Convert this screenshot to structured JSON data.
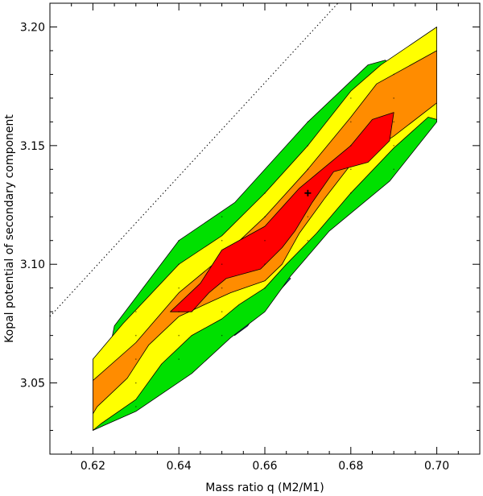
{
  "chart_data": {
    "type": "contour",
    "xlabel": "Mass ratio q (M2/M1)",
    "ylabel": "Kopal potential of secondary component",
    "xlim": [
      0.61,
      0.71
    ],
    "ylim": [
      3.02,
      3.21
    ],
    "x_ticks": [
      0.62,
      0.64,
      0.66,
      0.68,
      0.7
    ],
    "x_tick_labels": [
      "0.62",
      "0.64",
      "0.66",
      "0.68",
      "0.70"
    ],
    "y_ticks": [
      3.05,
      3.1,
      3.15,
      3.2
    ],
    "y_tick_labels": [
      "3.05",
      "3.10",
      "3.15",
      "3.20"
    ],
    "grid": false,
    "levels": [
      {
        "color": "#1e9bff",
        "polygon": [
          [
            0.652,
            3.073
          ],
          [
            0.662,
            3.086
          ],
          [
            0.666,
            3.094
          ],
          [
            0.664,
            3.095
          ],
          [
            0.656,
            3.074
          ],
          [
            0.653,
            3.07
          ]
        ]
      },
      {
        "color": "#00e000",
        "polygon": [
          [
            0.62,
            3.03
          ],
          [
            0.625,
            3.074
          ],
          [
            0.64,
            3.11
          ],
          [
            0.653,
            3.126
          ],
          [
            0.67,
            3.16
          ],
          [
            0.684,
            3.184
          ],
          [
            0.688,
            3.186
          ],
          [
            0.7,
            3.17
          ],
          [
            0.7,
            3.16
          ],
          [
            0.689,
            3.135
          ],
          [
            0.675,
            3.114
          ],
          [
            0.666,
            3.095
          ],
          [
            0.66,
            3.08
          ],
          [
            0.652,
            3.069
          ],
          [
            0.643,
            3.054
          ],
          [
            0.63,
            3.038
          ]
        ]
      },
      {
        "color": "#ffff00",
        "polygon": [
          [
            0.62,
            3.03
          ],
          [
            0.62,
            3.06
          ],
          [
            0.627,
            3.075
          ],
          [
            0.64,
            3.1
          ],
          [
            0.65,
            3.112
          ],
          [
            0.66,
            3.13
          ],
          [
            0.67,
            3.15
          ],
          [
            0.68,
            3.173
          ],
          [
            0.687,
            3.184
          ],
          [
            0.7,
            3.2
          ],
          [
            0.7,
            3.161
          ],
          [
            0.698,
            3.162
          ],
          [
            0.69,
            3.149
          ],
          [
            0.68,
            3.13
          ],
          [
            0.672,
            3.113
          ],
          [
            0.665,
            3.1
          ],
          [
            0.66,
            3.09
          ],
          [
            0.654,
            3.083
          ],
          [
            0.65,
            3.077
          ],
          [
            0.643,
            3.07
          ],
          [
            0.636,
            3.058
          ],
          [
            0.63,
            3.043
          ],
          [
            0.622,
            3.033
          ]
        ]
      },
      {
        "color": "#ff8c00",
        "polygon": [
          [
            0.62,
            3.037
          ],
          [
            0.62,
            3.051
          ],
          [
            0.63,
            3.067
          ],
          [
            0.64,
            3.088
          ],
          [
            0.65,
            3.103
          ],
          [
            0.66,
            3.12
          ],
          [
            0.67,
            3.14
          ],
          [
            0.68,
            3.162
          ],
          [
            0.686,
            3.176
          ],
          [
            0.7,
            3.19
          ],
          [
            0.7,
            3.168
          ],
          [
            0.69,
            3.154
          ],
          [
            0.68,
            3.142
          ],
          [
            0.674,
            3.128
          ],
          [
            0.668,
            3.113
          ],
          [
            0.664,
            3.1
          ],
          [
            0.66,
            3.093
          ],
          [
            0.652,
            3.088
          ],
          [
            0.646,
            3.083
          ],
          [
            0.64,
            3.078
          ],
          [
            0.633,
            3.066
          ],
          [
            0.628,
            3.052
          ],
          [
            0.621,
            3.04
          ]
        ]
      },
      {
        "color": "#ff0000",
        "polygon": [
          [
            0.638,
            3.08
          ],
          [
            0.645,
            3.092
          ],
          [
            0.65,
            3.106
          ],
          [
            0.66,
            3.116
          ],
          [
            0.668,
            3.132
          ],
          [
            0.672,
            3.138
          ],
          [
            0.68,
            3.15
          ],
          [
            0.685,
            3.161
          ],
          [
            0.69,
            3.164
          ],
          [
            0.689,
            3.152
          ],
          [
            0.684,
            3.143
          ],
          [
            0.676,
            3.139
          ],
          [
            0.671,
            3.126
          ],
          [
            0.667,
            3.114
          ],
          [
            0.664,
            3.107
          ],
          [
            0.659,
            3.098
          ],
          [
            0.651,
            3.094
          ],
          [
            0.647,
            3.088
          ],
          [
            0.643,
            3.08
          ]
        ]
      }
    ],
    "reference_line": {
      "style": "dotted",
      "points": [
        [
          0.61,
          3.078
        ],
        [
          0.677,
          3.21
        ]
      ]
    },
    "best_fit_marker": {
      "x": 0.67,
      "y": 3.13,
      "symbol": "+"
    },
    "grid_points": {
      "x": [
        0.62,
        0.63,
        0.64,
        0.65,
        0.66,
        0.67,
        0.68,
        0.69,
        0.7
      ],
      "y": [
        3.04,
        3.05,
        3.06,
        3.07,
        3.08,
        3.09,
        3.1,
        3.11,
        3.12,
        3.13,
        3.14,
        3.15,
        3.16,
        3.17,
        3.18,
        3.19
      ]
    }
  }
}
